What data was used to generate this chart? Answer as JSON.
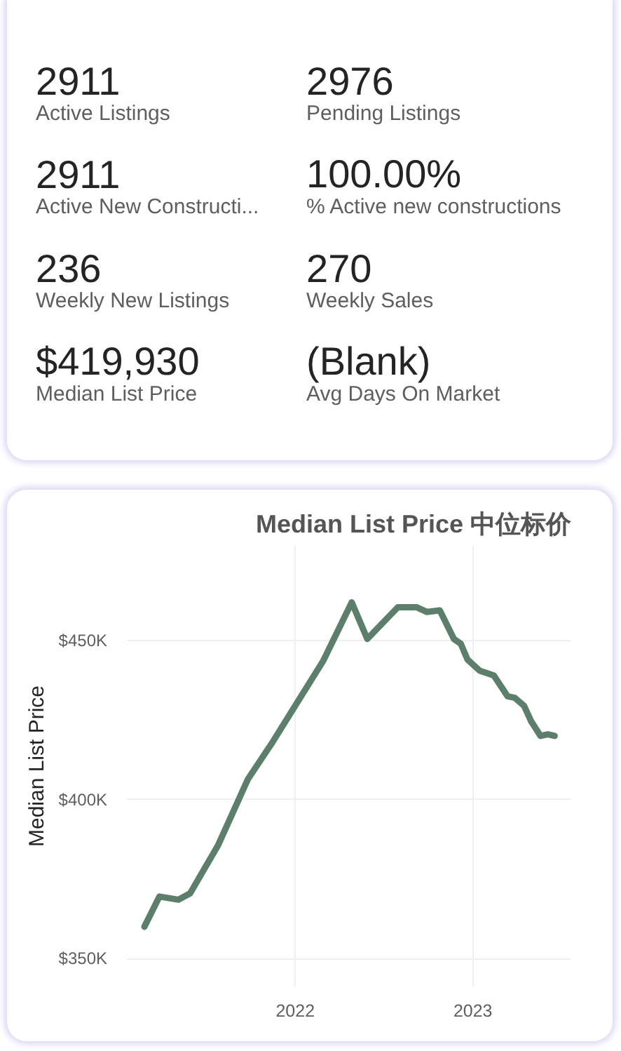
{
  "chart_data": [
    {
      "type": "other",
      "annotations": [
        "2911",
        "Active Listings",
        "2976",
        "Pending Listings",
        "2911",
        "Active New Constructi...",
        "100.00%",
        "% Active new constructions",
        "236",
        "Weekly New Listings",
        "270",
        "Weekly Sales",
        "$419,930",
        "Median List Price",
        "(Blank)",
        "Avg Days On Market"
      ]
    },
    {
      "type": "line",
      "title": "Median List Price 中位标价",
      "ylabel": "Median List Price",
      "x": [
        "2021-02-25",
        "2021-03-28",
        "2021-05-06",
        "2021-05-30",
        "2021-07-26",
        "2021-09-26",
        "2021-11-13",
        "2022-02-27",
        "2022-04-27",
        "2022-05-29",
        "2022-07-31",
        "2022-09-07",
        "2022-09-28",
        "2022-10-25",
        "2022-11-23",
        "2022-12-07",
        "2022-12-21",
        "2023-01-15",
        "2023-02-13",
        "2023-03-13",
        "2023-03-28",
        "2023-04-16",
        "2023-05-01",
        "2023-05-20",
        "2023-06-04",
        "2023-06-18"
      ],
      "values": [
        360000,
        369500,
        368500,
        370500,
        385500,
        406500,
        417500,
        443500,
        462000,
        450500,
        460500,
        460500,
        459000,
        459500,
        450500,
        449000,
        444000,
        440500,
        439000,
        432500,
        432000,
        429500,
        424500,
        420000,
        420500,
        420000
      ],
      "color": "#5b7f6b",
      "line_style": "solid",
      "xlim": [
        "2021-01-20",
        "2023-07-22"
      ],
      "ylim": [
        341000,
        480000
      ],
      "xticks": [
        "2022",
        "2023"
      ],
      "yticks": [
        {
          "value": 350000,
          "label": "$350K"
        },
        {
          "value": 400000,
          "label": "$400K"
        },
        {
          "value": 450000,
          "label": "$450K"
        }
      ],
      "grid": true
    }
  ]
}
